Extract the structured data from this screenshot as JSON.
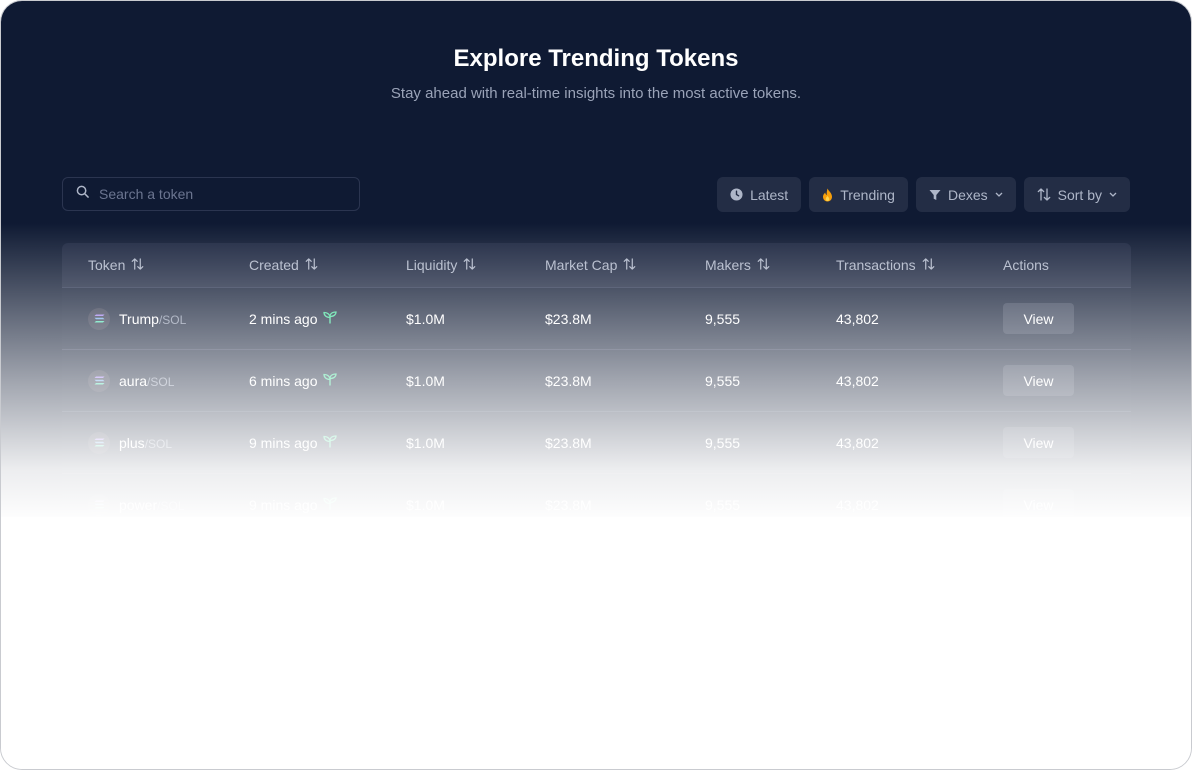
{
  "header": {
    "title": "Explore Trending Tokens",
    "subtitle": "Stay ahead with real-time insights into the most active tokens."
  },
  "search": {
    "placeholder": "Search a token",
    "value": ""
  },
  "filters": [
    {
      "label": "Latest",
      "icon": "clock-icon"
    },
    {
      "label": "Trending",
      "icon": "flame-icon"
    },
    {
      "label": "Dexes",
      "icon": "filter-icon"
    },
    {
      "label": "Sort by",
      "icon": "sort-icon"
    }
  ],
  "table": {
    "columns": [
      "Token",
      "Created",
      "Liquidity",
      "Market Cap",
      "Makers",
      "Transactions",
      "Actions"
    ],
    "rows": [
      {
        "name": "Trump",
        "pair": "/SOL",
        "created": "2 mins ago",
        "liquidity": "$1.0M",
        "market_cap": "$23.8M",
        "makers": "9,555",
        "transactions": "43,802",
        "action": "View"
      },
      {
        "name": "aura",
        "pair": "/SOL",
        "created": "6 mins ago",
        "liquidity": "$1.0M",
        "market_cap": "$23.8M",
        "makers": "9,555",
        "transactions": "43,802",
        "action": "View"
      },
      {
        "name": "plus",
        "pair": "/SOL",
        "created": "9 mins ago",
        "liquidity": "$1.0M",
        "market_cap": "$23.8M",
        "makers": "9,555",
        "transactions": "43,802",
        "action": "View"
      },
      {
        "name": "power",
        "pair": "/SOL",
        "created": "9 mins ago",
        "liquidity": "$1.0M",
        "market_cap": "$23.8M",
        "makers": "9,555",
        "transactions": "43,802",
        "action": "View"
      }
    ]
  },
  "colors": {
    "background": "#0f1a33",
    "new_sprout": "#3ddc97",
    "flame": "#f59e0b"
  }
}
